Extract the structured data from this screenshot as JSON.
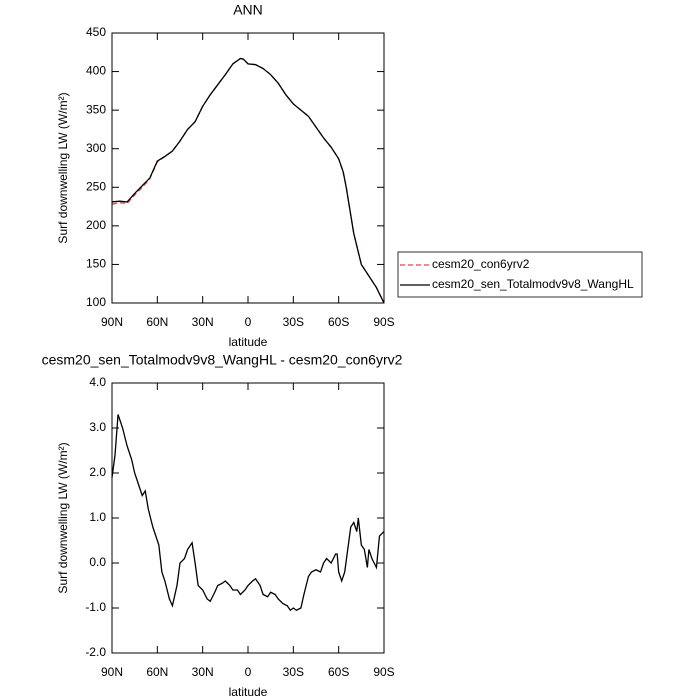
{
  "chart_data": [
    {
      "type": "line",
      "title": "ANN",
      "x_label": "latitude",
      "y_label": "Surf downwelling LW (W/m²)",
      "x": [
        90,
        85,
        80,
        75,
        70,
        65,
        60,
        55,
        50,
        45,
        40,
        35,
        30,
        25,
        20,
        15,
        10,
        5,
        3,
        0,
        -5,
        -10,
        -15,
        -20,
        -25,
        -30,
        -35,
        -40,
        -45,
        -50,
        -55,
        -60,
        -63,
        -65,
        -70,
        -75,
        -80,
        -85,
        -90
      ],
      "series": [
        {
          "name": "cesm20_con6yrv2",
          "color": "#e8413c",
          "dash": true,
          "values": [
            228,
            230,
            229,
            240,
            250,
            261,
            283,
            290,
            297,
            310,
            325,
            335,
            355,
            370,
            383,
            396,
            410,
            417,
            416,
            410,
            409,
            404,
            396,
            385,
            370,
            358,
            350,
            342,
            328,
            314,
            302,
            287,
            270,
            250,
            190,
            150,
            135,
            120,
            100
          ]
        },
        {
          "name": "cesm20_sen_Totalmodv9v8_WangHL",
          "color": "#000000",
          "dash": false,
          "values": [
            231,
            232,
            231,
            242,
            252,
            262,
            284,
            290,
            297,
            310,
            325,
            335,
            355,
            370,
            383,
            396,
            410,
            417,
            416,
            410,
            409,
            404,
            396,
            385,
            370,
            358,
            350,
            342,
            328,
            314,
            302,
            287,
            270,
            250,
            190,
            150,
            135,
            120,
            100
          ]
        }
      ],
      "xlim": [
        90,
        -90
      ],
      "xticks": [
        {
          "value": 90,
          "label": "90N"
        },
        {
          "value": 60,
          "label": "60N"
        },
        {
          "value": 30,
          "label": "30N"
        },
        0,
        {
          "value": -30,
          "label": "30S"
        },
        {
          "value": -60,
          "label": "60S"
        },
        {
          "value": -90,
          "label": "90S"
        }
      ],
      "ylim": [
        100,
        450
      ],
      "yticks": [
        100,
        150,
        200,
        250,
        300,
        350,
        400,
        450
      ],
      "legend": "right"
    },
    {
      "type": "line",
      "title": "cesm20_sen_Totalmodv9v8_WangHL - cesm20_con6yrv2",
      "x_label": "latitude",
      "y_label": "Surf downwelling LW (W/m²)",
      "x": [
        90,
        88,
        86,
        83,
        80,
        77,
        75,
        72,
        70,
        68,
        66,
        63,
        61,
        59,
        57,
        55,
        52,
        50,
        47,
        45,
        42,
        40,
        37,
        35,
        33,
        30,
        27,
        25,
        22,
        20,
        17,
        15,
        12,
        10,
        7,
        5,
        2,
        0,
        -3,
        -5,
        -8,
        -10,
        -13,
        -15,
        -18,
        -20,
        -23,
        -26,
        -28,
        -30,
        -32,
        -35,
        -37,
        -40,
        -42,
        -45,
        -48,
        -50,
        -52,
        -55,
        -58,
        -59,
        -60,
        -62,
        -64,
        -66,
        -68,
        -70,
        -72,
        -73,
        -75,
        -77,
        -79,
        -80,
        -82,
        -85,
        -87,
        -90
      ],
      "series": [
        {
          "color": "#000000",
          "dash": false,
          "values": [
            1.9,
            2.4,
            3.3,
            3.0,
            2.6,
            2.3,
            2.0,
            1.7,
            1.5,
            1.6,
            1.2,
            0.8,
            0.6,
            0.4,
            -0.2,
            -0.4,
            -0.8,
            -0.95,
            -0.5,
            0.0,
            0.1,
            0.3,
            0.45,
            0.0,
            -0.5,
            -0.6,
            -0.8,
            -0.85,
            -0.65,
            -0.5,
            -0.45,
            -0.4,
            -0.5,
            -0.6,
            -0.6,
            -0.7,
            -0.6,
            -0.5,
            -0.4,
            -0.35,
            -0.5,
            -0.7,
            -0.75,
            -0.65,
            -0.7,
            -0.8,
            -0.9,
            -0.95,
            -1.05,
            -1.0,
            -1.05,
            -1.0,
            -0.7,
            -0.3,
            -0.2,
            -0.15,
            -0.2,
            0.0,
            0.1,
            0.0,
            0.2,
            0.2,
            -0.2,
            -0.4,
            -0.2,
            0.3,
            0.8,
            0.9,
            0.7,
            1.0,
            0.4,
            0.3,
            -0.1,
            0.3,
            0.1,
            -0.1,
            0.6,
            0.7
          ]
        }
      ],
      "xlim": [
        90,
        -90
      ],
      "xticks": [
        {
          "value": 90,
          "label": "90N"
        },
        {
          "value": 60,
          "label": "60N"
        },
        {
          "value": 30,
          "label": "30N"
        },
        0,
        {
          "value": -30,
          "label": "30S"
        },
        {
          "value": -60,
          "label": "60S"
        },
        {
          "value": -90,
          "label": "90S"
        }
      ],
      "ylim": [
        -2,
        4
      ],
      "yticks": [
        {
          "value": -2,
          "label": "-2.0"
        },
        {
          "value": -1,
          "label": "-1.0"
        },
        {
          "value": 0,
          "label": "0.0"
        },
        {
          "value": 1,
          "label": "1.0"
        },
        {
          "value": 2,
          "label": "2.0"
        },
        {
          "value": 3,
          "label": "3.0"
        },
        {
          "value": 4,
          "label": "4.0"
        }
      ]
    }
  ]
}
